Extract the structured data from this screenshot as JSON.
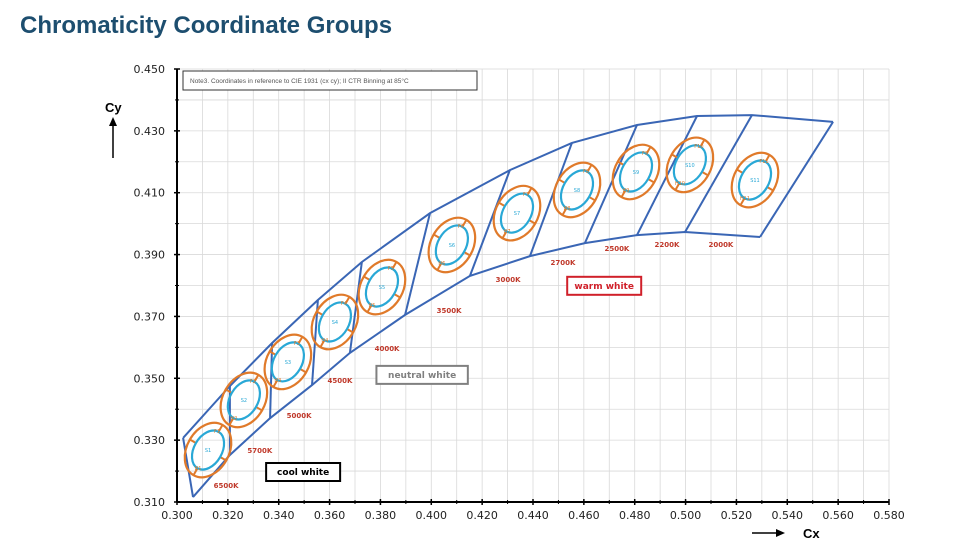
{
  "title": "Chromaticity Coordinate Groups",
  "chart_data": {
    "type": "scatter",
    "title": "Chromaticity Coordinate Groups",
    "xlabel": "Cx",
    "ylabel": "Cy",
    "xlim": [
      0.3,
      0.58
    ],
    "ylim": [
      0.31,
      0.45
    ],
    "grid": true,
    "x_ticks": [
      "0.300",
      "0.320",
      "0.340",
      "0.360",
      "0.380",
      "0.400",
      "0.420",
      "0.440",
      "0.460",
      "0.480",
      "0.500",
      "0.520",
      "0.540",
      "0.560",
      "0.580"
    ],
    "y_ticks": [
      "0.310",
      "0.330",
      "0.350",
      "0.370",
      "0.390",
      "0.410",
      "0.430",
      "0.450"
    ],
    "note": "Note3. Coordinates in reference to CIE 1931 (cx cy); II CTR Binning at 85°C",
    "boundary_top": [
      [
        0.3024,
        0.3307
      ],
      [
        0.3208,
        0.3475
      ],
      [
        0.3374,
        0.3614
      ],
      [
        0.3554,
        0.3753
      ],
      [
        0.3727,
        0.3876
      ],
      [
        0.3995,
        0.4034
      ],
      [
        0.4309,
        0.4173
      ],
      [
        0.4553,
        0.4261
      ],
      [
        0.4809,
        0.4319
      ],
      [
        0.5045,
        0.4348
      ],
      [
        0.5261,
        0.4351
      ],
      [
        0.558,
        0.4329
      ]
    ],
    "boundary_bottom": [
      [
        0.3063,
        0.3116
      ],
      [
        0.3208,
        0.3252
      ],
      [
        0.3366,
        0.3371
      ],
      [
        0.3531,
        0.3478
      ],
      [
        0.368,
        0.3582
      ],
      [
        0.3897,
        0.3705
      ],
      [
        0.4152,
        0.3831
      ],
      [
        0.4388,
        0.3895
      ],
      [
        0.4604,
        0.3937
      ],
      [
        0.4809,
        0.3963
      ],
      [
        0.4998,
        0.3973
      ],
      [
        0.5293,
        0.3957
      ]
    ],
    "bins": [
      {
        "cct": "6500K",
        "s": "S1",
        "f": "F1",
        "h": "H1",
        "cx": 0.3122,
        "cy": 0.3268,
        "label_at": [
          0.3193,
          0.3145
        ]
      },
      {
        "cct": "5700K",
        "s": "S2",
        "f": "F2",
        "h": "H2",
        "cx": 0.3263,
        "cy": 0.343,
        "label_at": [
          0.3326,
          0.3258
        ]
      },
      {
        "cct": "5000K",
        "s": "S3",
        "f": "F3",
        "h": "H3",
        "cx": 0.3436,
        "cy": 0.3553,
        "label_at": [
          0.348,
          0.3371
        ]
      },
      {
        "cct": "4500K",
        "s": "S4",
        "f": "F4",
        "h": "H4",
        "cx": 0.3621,
        "cy": 0.3682,
        "label_at": [
          0.3641,
          0.3484
        ]
      },
      {
        "cct": "4000K",
        "s": "S5",
        "f": "F5",
        "h": "H5",
        "cx": 0.3806,
        "cy": 0.3795,
        "label_at": [
          0.3826,
          0.3588
        ]
      },
      {
        "cct": "3500K",
        "s": "S6",
        "f": "F6",
        "h": "H6",
        "cx": 0.4081,
        "cy": 0.3931,
        "label_at": [
          0.407,
          0.3711
        ]
      },
      {
        "cct": "3000K",
        "s": "S7",
        "f": "F7",
        "h": "H7",
        "cx": 0.4337,
        "cy": 0.4034,
        "label_at": [
          0.4302,
          0.3811
        ]
      },
      {
        "cct": "2700K",
        "s": "S8",
        "f": "F8",
        "h": "H8",
        "cx": 0.4573,
        "cy": 0.4109,
        "label_at": [
          0.4518,
          0.3866
        ]
      },
      {
        "cct": "2500K",
        "s": "S9",
        "f": "F9",
        "h": "H9",
        "cx": 0.4805,
        "cy": 0.4167,
        "label_at": [
          0.473,
          0.3912
        ]
      },
      {
        "cct": "2200K",
        "s": "S10",
        "f": "F10",
        "h": "H10",
        "cx": 0.5017,
        "cy": 0.419,
        "label_at": [
          0.4927,
          0.3924
        ]
      },
      {
        "cct": "2000K",
        "s": "S11",
        "f": "F11",
        "h": "H11",
        "cx": 0.5273,
        "cy": 0.4141,
        "label_at": [
          0.5139,
          0.3924
        ]
      }
    ],
    "groups": [
      {
        "label": "cool white",
        "color": "#000000",
        "at": [
          0.3496,
          0.3197
        ]
      },
      {
        "label": "neutral white",
        "color": "#808080",
        "at": [
          0.3964,
          0.3511
        ]
      },
      {
        "label": "warm white",
        "color": "#d0202a",
        "at": [
          0.468,
          0.3799
        ]
      }
    ],
    "colors": {
      "boundary": "#3a66b5",
      "outer_ellipse": "#e07a2a",
      "inner_ellipse": "#29a8d6",
      "cct_label": "#c0392b",
      "grid": "#d9d9d9"
    }
  }
}
